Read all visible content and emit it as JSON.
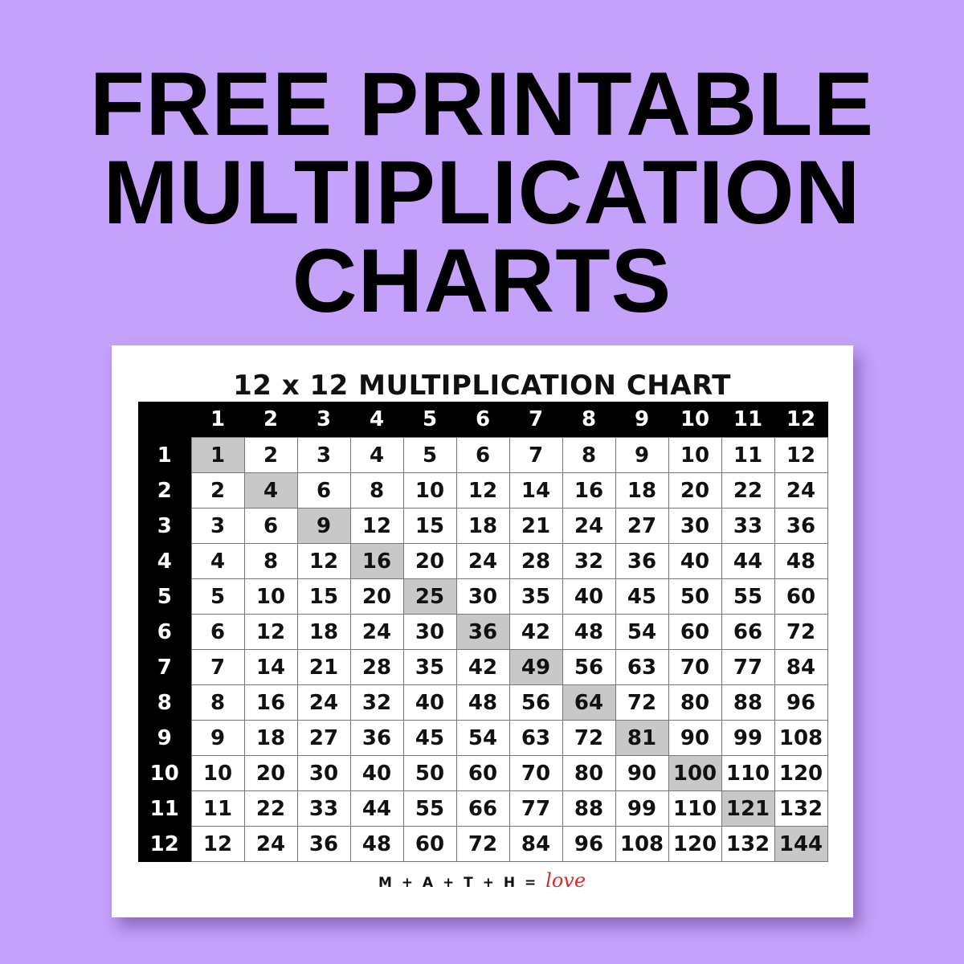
{
  "headline": {
    "line1": "FREE PRINTABLE",
    "line2": "MULTIPLICATION",
    "line3": "CHARTS"
  },
  "chart": {
    "title": "12 x 12 MULTIPLICATION CHART",
    "column_headers": [
      "1",
      "2",
      "3",
      "4",
      "5",
      "6",
      "7",
      "8",
      "9",
      "10",
      "11",
      "12"
    ],
    "row_headers": [
      "1",
      "2",
      "3",
      "4",
      "5",
      "6",
      "7",
      "8",
      "9",
      "10",
      "11",
      "12"
    ],
    "rows": [
      [
        "1",
        "2",
        "3",
        "4",
        "5",
        "6",
        "7",
        "8",
        "9",
        "10",
        "11",
        "12"
      ],
      [
        "2",
        "4",
        "6",
        "8",
        "10",
        "12",
        "14",
        "16",
        "18",
        "20",
        "22",
        "24"
      ],
      [
        "3",
        "6",
        "9",
        "12",
        "15",
        "18",
        "21",
        "24",
        "27",
        "30",
        "33",
        "36"
      ],
      [
        "4",
        "8",
        "12",
        "16",
        "20",
        "24",
        "28",
        "32",
        "36",
        "40",
        "44",
        "48"
      ],
      [
        "5",
        "10",
        "15",
        "20",
        "25",
        "30",
        "35",
        "40",
        "45",
        "50",
        "55",
        "60"
      ],
      [
        "6",
        "12",
        "18",
        "24",
        "30",
        "36",
        "42",
        "48",
        "54",
        "60",
        "66",
        "72"
      ],
      [
        "7",
        "14",
        "21",
        "28",
        "35",
        "42",
        "49",
        "56",
        "63",
        "70",
        "77",
        "84"
      ],
      [
        "8",
        "16",
        "24",
        "32",
        "40",
        "48",
        "56",
        "64",
        "72",
        "80",
        "88",
        "96"
      ],
      [
        "9",
        "18",
        "27",
        "36",
        "45",
        "54",
        "63",
        "72",
        "81",
        "90",
        "99",
        "108"
      ],
      [
        "10",
        "20",
        "30",
        "40",
        "50",
        "60",
        "70",
        "80",
        "90",
        "100",
        "110",
        "120"
      ],
      [
        "11",
        "22",
        "33",
        "44",
        "55",
        "66",
        "77",
        "88",
        "99",
        "110",
        "121",
        "132"
      ],
      [
        "12",
        "24",
        "36",
        "48",
        "60",
        "72",
        "84",
        "96",
        "108",
        "120",
        "132",
        "144"
      ]
    ],
    "highlight": "diagonal squares",
    "highlight_color": "#c8c8c8"
  },
  "footer": {
    "text": "M + A + T + H =",
    "logo_word": "love"
  },
  "colors": {
    "background": "#c4a1fb",
    "accent": "#d42a2a"
  }
}
